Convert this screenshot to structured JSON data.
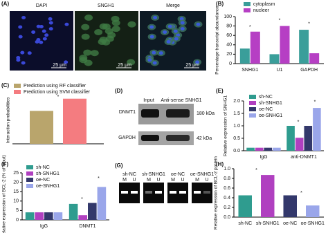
{
  "figure": {
    "a": {
      "label": "(A)",
      "images": [
        "DAPI",
        "SNGH1",
        "Merge"
      ],
      "scale_bars": [
        "25 μm",
        "25 μm",
        "25 μm"
      ]
    },
    "d": {
      "label": "(D)",
      "columns": [
        "Input",
        "Anti-sense SNHG1"
      ],
      "rows": [
        {
          "name": "DNMT1",
          "size": "180 kDa"
        },
        {
          "name": "GAPDH",
          "size": "42 kDa"
        }
      ]
    },
    "g": {
      "label": "(G)",
      "lanes": [
        "sh-NC",
        "sh-SNHG1",
        "oe-NC",
        "oe-SNHG1"
      ],
      "lane_marks": [
        "M",
        "U"
      ]
    }
  },
  "chart_data": [
    {
      "type": "bar",
      "label": "(B)",
      "ylabel": "Percentage transcript abaundance",
      "categories": [
        "SNHG1",
        "U1",
        "GAPDH"
      ],
      "series": [
        {
          "name": "cytoplasm",
          "color": "#3a9e9a",
          "values": [
            32,
            20,
            72
          ]
        },
        {
          "name": "nucleer",
          "color": "#b63fc4",
          "values": [
            68,
            80,
            22
          ]
        }
      ],
      "ylim": [
        0,
        100
      ],
      "yticks": [
        0,
        20,
        40,
        60,
        80,
        100
      ],
      "legend": "top",
      "annotations": [
        "*",
        "*",
        "*"
      ]
    },
    {
      "type": "bar",
      "label": "(C)",
      "ylabel": "Interaction probabilities",
      "categories": [
        null
      ],
      "series": [
        {
          "name": "Prediction using RF classifier",
          "color": "#b9a56c",
          "values": [
            0.7
          ]
        },
        {
          "name": "Prediction using SVM classifier",
          "color": "#f47c80",
          "values": [
            0.96
          ]
        }
      ],
      "ylim": [
        0,
        1
      ],
      "legend": "top",
      "annotations": [
        "*"
      ]
    },
    {
      "type": "bar",
      "label": "(E)",
      "ylabel": "Relative expression of SNHG1",
      "categories": [
        "IgG",
        "anti-DNMT1"
      ],
      "series": [
        {
          "name": "sh-NC",
          "color": "#2f9c8f",
          "values": [
            0.12,
            1.0
          ]
        },
        {
          "name": "sh-SNHG1",
          "color": "#b040c0",
          "values": [
            0.12,
            0.52
          ]
        },
        {
          "name": "oe-NC",
          "color": "#33386b",
          "values": [
            0.12,
            1.0
          ]
        },
        {
          "name": "oe-SNHG1",
          "color": "#9aa6ea",
          "values": [
            0.12,
            1.72
          ]
        }
      ],
      "ylim": [
        0,
        2
      ],
      "yticks": [
        {
          "value": 0,
          "label": "0.0"
        },
        0.5,
        {
          "value": 1,
          "label": "1.0"
        },
        1.5,
        {
          "value": 2,
          "label": "2.0"
        }
      ],
      "legend": "upper left",
      "annotations": [
        "*",
        "*"
      ]
    },
    {
      "type": "bar",
      "label": "(F)",
      "ylabel": "Relative expression of BCL-2 (% of input)",
      "categories": [
        "IgG",
        "DNMT1"
      ],
      "series": [
        {
          "name": "sh-NC",
          "color": "#2f9c8f",
          "values": [
            4,
            8.5
          ]
        },
        {
          "name": "sh-SNHG1",
          "color": "#b040c0",
          "values": [
            4,
            2.5
          ]
        },
        {
          "name": "oe-NC",
          "color": "#33386b",
          "values": [
            4,
            9
          ]
        },
        {
          "name": "oe-SNHG1",
          "color": "#9aa6ea",
          "values": [
            4,
            17.5
          ]
        }
      ],
      "ylim": [
        0,
        25
      ],
      "yticks": [
        0,
        5,
        10,
        15,
        20,
        25
      ],
      "legend": "upper left",
      "annotations": [
        "*",
        "*"
      ]
    },
    {
      "type": "bar",
      "label": "(H)",
      "ylabel": "Relative expression of BCL-2 protein",
      "categories": [
        "sh-NC",
        "sh-SNHG1",
        "oe-NC",
        "oe-SNHG1"
      ],
      "values": [
        0.45,
        0.87,
        0.45,
        0.24
      ],
      "colors": [
        "#2f9c8f",
        "#b040c0",
        "#33386b",
        "#9aa6ea"
      ],
      "ylim": [
        0,
        1
      ],
      "yticks": [
        {
          "value": 0,
          "label": "0.0"
        },
        0.2,
        0.4,
        0.6,
        0.8,
        {
          "value": 1,
          "label": "1.0"
        }
      ],
      "annotations": [
        "*",
        "*"
      ]
    }
  ]
}
